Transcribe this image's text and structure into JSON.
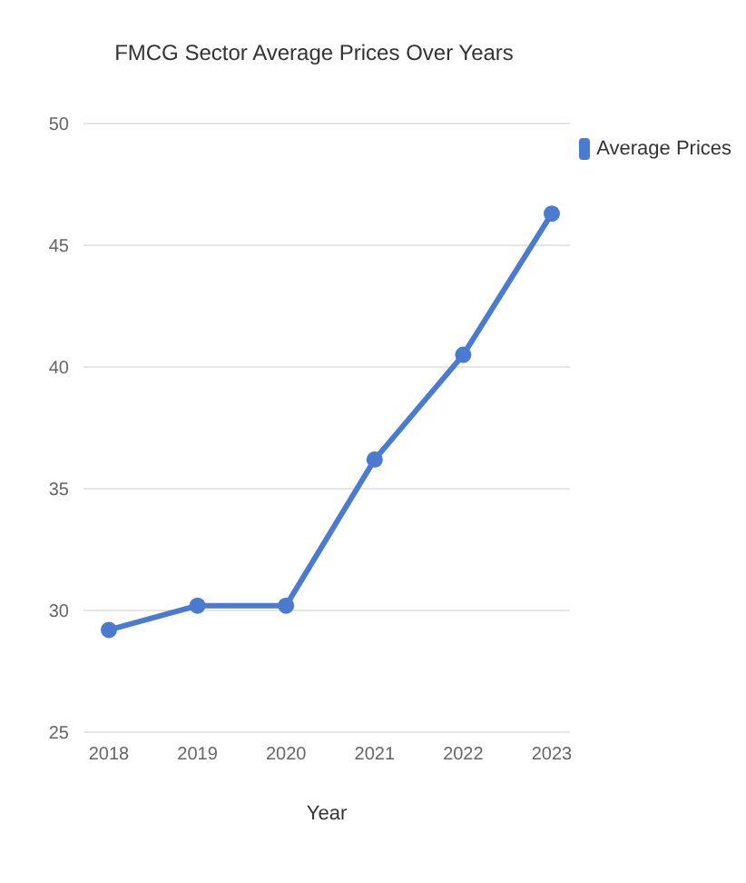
{
  "chart_data": {
    "type": "line",
    "title": "FMCG Sector Average Prices Over Years",
    "xlabel": "Year",
    "categories": [
      "2018",
      "2019",
      "2020",
      "2021",
      "2022",
      "2023"
    ],
    "series": [
      {
        "name": "Average Prices",
        "color": "#4a7bd0",
        "values": [
          29.2,
          30.2,
          30.2,
          36.2,
          40.5,
          46.3
        ]
      }
    ],
    "ylim": [
      25,
      50
    ],
    "yticks": [
      25,
      30,
      35,
      40,
      45,
      50
    ],
    "grid": "y",
    "legend": "top right",
    "marker": "circle",
    "line_style": "solid"
  }
}
